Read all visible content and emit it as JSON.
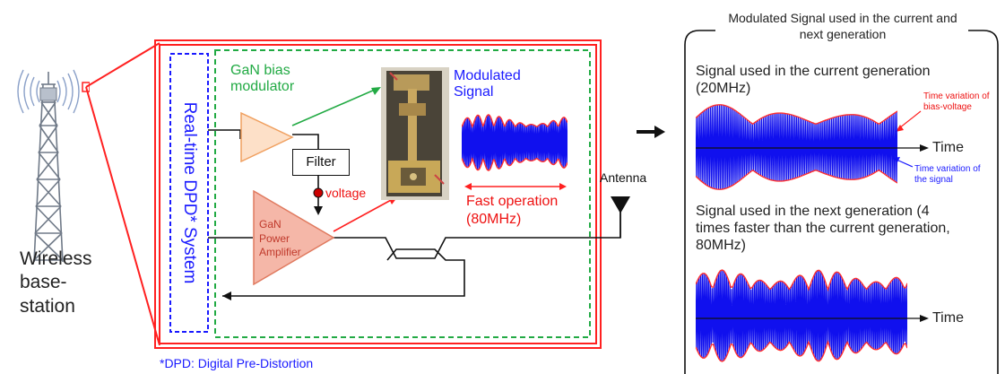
{
  "colors": {
    "frame_red": "#ff2020",
    "dashed_blue": "#1a1aff",
    "dashed_green": "#22aa44",
    "green_text": "#22aa44",
    "blue_text": "#1a1aff",
    "red_text": "#ee1111",
    "amp_fill": "#f5b7a8",
    "amp_border": "#e07a5f",
    "modulator_fill": "#fde0c8",
    "modulator_border": "#f0a060",
    "signal_blue": "#1010ee",
    "envelope_red": "#ff3030"
  },
  "tower": {
    "label": "Wireless base-station",
    "icon": "cell-tower-icon"
  },
  "system": {
    "dpd_label": "Real-time DPD* System",
    "bias_modulator_label": "GaN bias modulator",
    "filter_label": "Filter",
    "voltage_label": "voltage",
    "amplifier_label": "GaN Power Amplifier",
    "modulated_signal_label": "Modulated Signal",
    "fast_operation_label": "Fast operation (80MHz)",
    "antenna_label": "Antenna",
    "footnote": "*DPD: Digital Pre-Distortion"
  },
  "panel": {
    "title": "Modulated Signal used in the current and next generation",
    "current_caption": "Signal used in the current generation (20MHz)",
    "bias_annotation": "Time variation of bias-voltage",
    "signal_annotation": "Time variation of the signal",
    "time_label": "Time",
    "next_caption": "Signal used in the next generation (4 times faster than the current generation, 80MHz)",
    "time_label_2": "Time"
  }
}
